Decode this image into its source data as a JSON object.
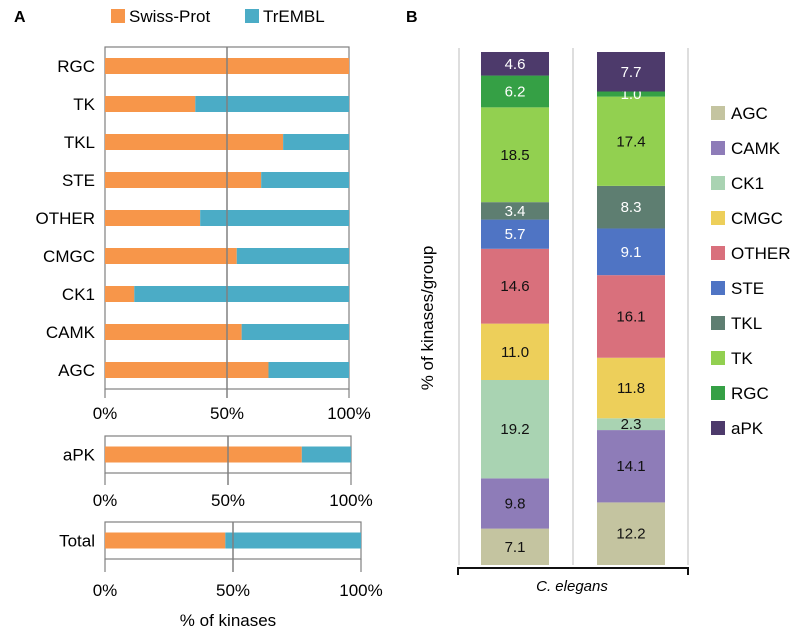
{
  "panels": {
    "a_label": "A",
    "b_label": "B"
  },
  "colors": {
    "swiss_prot": "#F7964A",
    "trembl": "#4BACC6",
    "gridline": "#808080",
    "AGC": "#C4C4A0",
    "CAMK": "#8E7CB8",
    "CK1": "#A9D3B2",
    "CMGC": "#EDCF5A",
    "OTHER": "#D9707C",
    "STE": "#4F74C4",
    "TKL": "#5E7E71",
    "TK": "#92D050",
    "RGC": "#35A045",
    "aPK": "#4D3A6B"
  },
  "chart_data": [
    {
      "type": "bar",
      "orientation": "horizontal",
      "stacked": true,
      "legend": [
        "Swiss-Prot",
        "TrEMBL"
      ],
      "legend_position": "top",
      "categories": [
        "RGC",
        "TK",
        "TKL",
        "STE",
        "OTHER",
        "CMGC",
        "CK1",
        "CAMK",
        "AGC"
      ],
      "series": [
        {
          "name": "Swiss-Prot",
          "values": [
            100,
            37,
            73,
            64,
            39,
            54,
            12,
            56,
            67
          ]
        },
        {
          "name": "TrEMBL",
          "values": [
            0,
            63,
            27,
            36,
            61,
            46,
            88,
            44,
            33
          ]
        }
      ],
      "xlim": [
        0,
        100
      ],
      "xticks": [
        "0%",
        "50%",
        "100%"
      ]
    },
    {
      "type": "bar",
      "orientation": "horizontal",
      "stacked": true,
      "categories": [
        "aPK"
      ],
      "series": [
        {
          "name": "Swiss-Prot",
          "values": [
            80
          ]
        },
        {
          "name": "TrEMBL",
          "values": [
            20
          ]
        }
      ],
      "xlim": [
        0,
        100
      ],
      "xticks": [
        "0%",
        "50%",
        "100%"
      ]
    },
    {
      "type": "bar",
      "orientation": "horizontal",
      "stacked": true,
      "categories": [
        "Total"
      ],
      "series": [
        {
          "name": "Swiss-Prot",
          "values": [
            47
          ]
        },
        {
          "name": "TrEMBL",
          "values": [
            53
          ]
        }
      ],
      "xlim": [
        0,
        100
      ],
      "xticks": [
        "0%",
        "50%",
        "100%"
      ],
      "xlabel": "% of kinases"
    },
    {
      "type": "bar",
      "stacked": true,
      "ylabel": "% of kinases/group",
      "group_label": "C. elegans",
      "legend_position": "right",
      "legend": [
        "AGC",
        "CAMK",
        "CK1",
        "CMGC",
        "OTHER",
        "STE",
        "TKL",
        "TK",
        "RGC",
        "aPK"
      ],
      "columns": [
        {
          "segments": [
            {
              "group": "AGC",
              "value": 7.1,
              "label": "7.1"
            },
            {
              "group": "CAMK",
              "value": 9.8,
              "label": "9.8"
            },
            {
              "group": "CK1",
              "value": 19.2,
              "label": "19.2"
            },
            {
              "group": "CMGC",
              "value": 11.0,
              "label": "11.0"
            },
            {
              "group": "OTHER",
              "value": 14.6,
              "label": "14.6"
            },
            {
              "group": "STE",
              "value": 5.7,
              "label": "5.7"
            },
            {
              "group": "TKL",
              "value": 3.4,
              "label": "3.4"
            },
            {
              "group": "TK",
              "value": 18.5,
              "label": "18.5"
            },
            {
              "group": "RGC",
              "value": 6.2,
              "label": "6.2"
            },
            {
              "group": "aPK",
              "value": 4.6,
              "label": "4.6"
            }
          ]
        },
        {
          "segments": [
            {
              "group": "AGC",
              "value": 12.2,
              "label": "12.2"
            },
            {
              "group": "CAMK",
              "value": 14.1,
              "label": "14.1"
            },
            {
              "group": "CK1",
              "value": 2.3,
              "label": "2.3"
            },
            {
              "group": "CMGC",
              "value": 11.8,
              "label": "11.8"
            },
            {
              "group": "OTHER",
              "value": 16.1,
              "label": "16.1"
            },
            {
              "group": "STE",
              "value": 9.1,
              "label": "9.1"
            },
            {
              "group": "TKL",
              "value": 8.3,
              "label": "8.3"
            },
            {
              "group": "TK",
              "value": 17.4,
              "label": "17.4"
            },
            {
              "group": "RGC",
              "value": 1.0,
              "label": "1.0"
            },
            {
              "group": "aPK",
              "value": 7.7,
              "label": "7.7"
            }
          ]
        }
      ]
    }
  ]
}
